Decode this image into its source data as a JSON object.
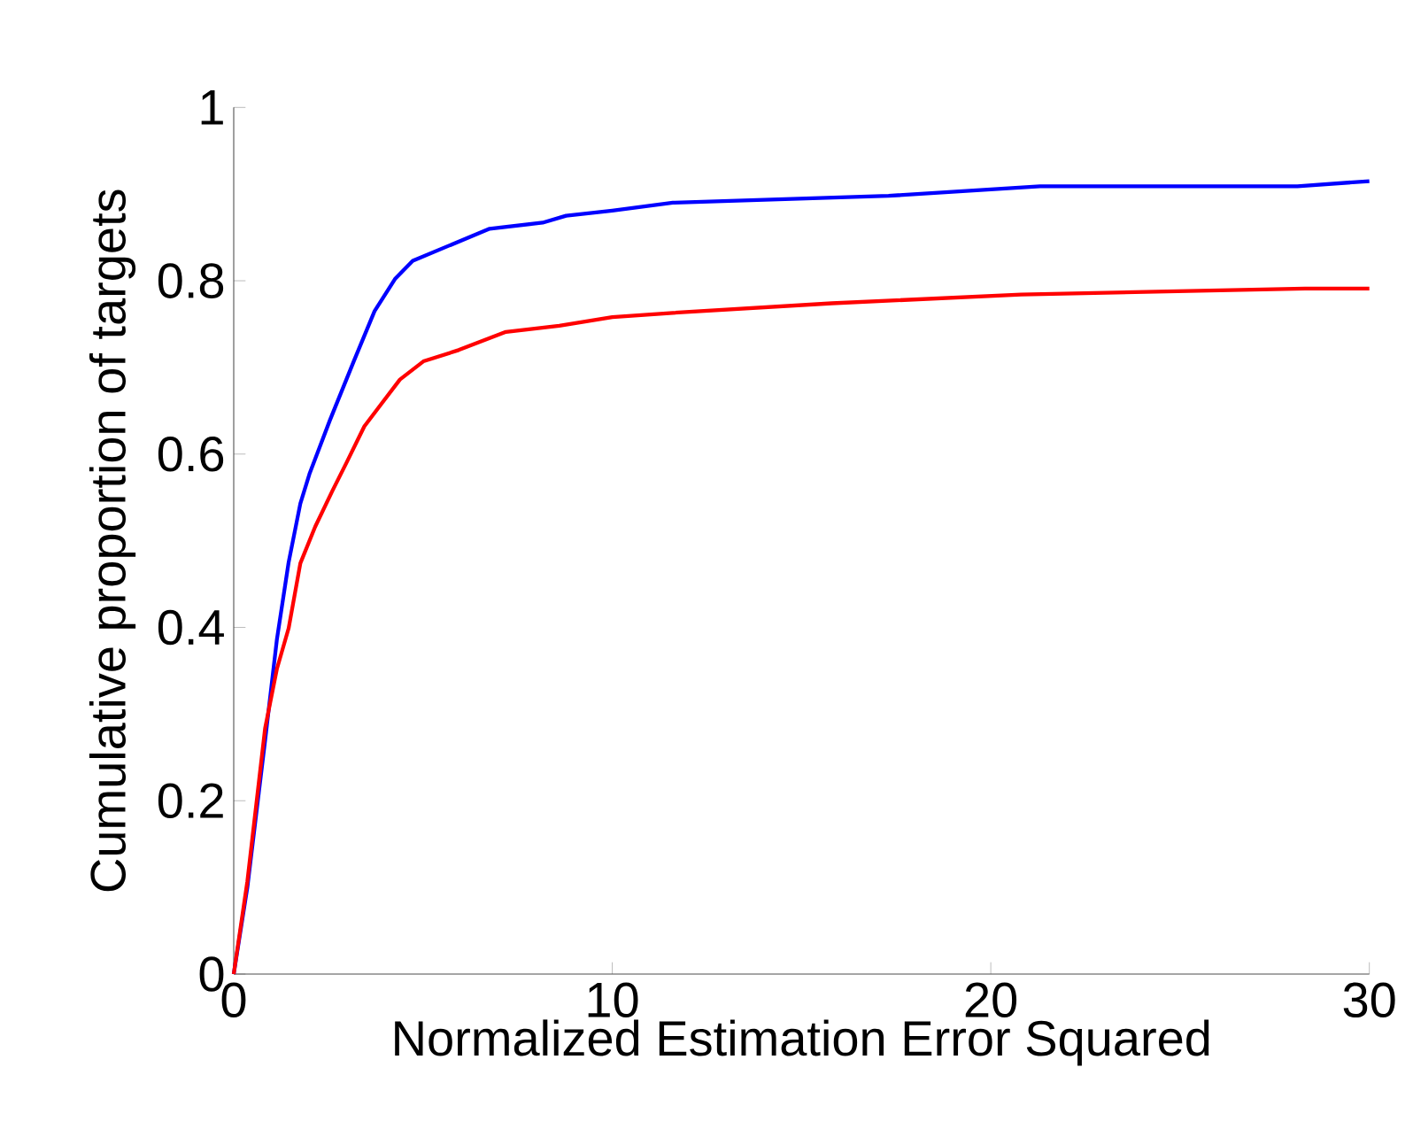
{
  "chart_data": {
    "type": "line",
    "xlabel": "Normalized Estimation Error Squared",
    "ylabel": "Cumulative proportion of targets",
    "xlim": [
      0,
      30
    ],
    "ylim": [
      0,
      1
    ],
    "xticks": [
      0,
      10,
      20,
      30
    ],
    "yticks": [
      0,
      0.2,
      0.4,
      0.6,
      0.8,
      1
    ],
    "series": [
      {
        "color": "#0000ff",
        "x": [
          0,
          0.36,
          0.83,
          1.14,
          1.45,
          1.76,
          2.0,
          2.54,
          3.17,
          3.72,
          4.26,
          4.73,
          5.66,
          6.76,
          8.16,
          8.78,
          10.0,
          11.6,
          17.3,
          21.3,
          28.1,
          30
        ],
        "values": [
          0,
          0.1,
          0.27,
          0.386,
          0.475,
          0.543,
          0.577,
          0.639,
          0.707,
          0.765,
          0.802,
          0.823,
          0.84,
          0.86,
          0.867,
          0.875,
          0.881,
          0.89,
          0.898,
          0.909,
          0.909,
          0.915
        ]
      },
      {
        "color": "#ff0000",
        "x": [
          0,
          0.36,
          0.83,
          1.14,
          1.45,
          1.76,
          2.15,
          2.6,
          2.99,
          3.45,
          3.92,
          4.39,
          5.01,
          5.94,
          7.19,
          8.6,
          10.0,
          11.6,
          15.8,
          20.8,
          28.3,
          30
        ],
        "values": [
          0,
          0.107,
          0.284,
          0.352,
          0.399,
          0.474,
          0.516,
          0.557,
          0.591,
          0.632,
          0.659,
          0.686,
          0.707,
          0.72,
          0.741,
          0.748,
          0.758,
          0.763,
          0.774,
          0.784,
          0.791,
          0.791
        ]
      }
    ]
  }
}
